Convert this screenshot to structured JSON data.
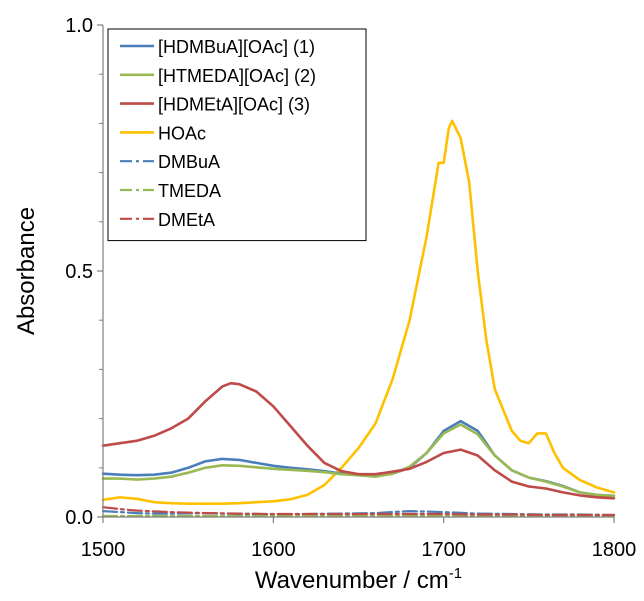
{
  "chart_data": {
    "type": "line",
    "title": "",
    "xlabel": "Wavenumber / cm",
    "xlabel_superscript": "-1",
    "ylabel": "Absorbance",
    "xlim": [
      1500,
      1800
    ],
    "ylim": [
      0,
      1.0
    ],
    "x_ticks": [
      1500,
      1600,
      1700,
      1800
    ],
    "x_tick_labels": [
      "1500",
      "1600",
      "1700",
      "1800"
    ],
    "y_ticks": [
      0,
      0.5,
      1.0
    ],
    "y_tick_labels": [
      "0.0",
      "0.5",
      "1.0"
    ],
    "y_minor_ticks": [
      0.1,
      0.2,
      0.3,
      0.4,
      0.6,
      0.7,
      0.8,
      0.9
    ],
    "grid": false,
    "legend_position": "top-left",
    "series": [
      {
        "name": "[HDMBuA][OAc] (1)",
        "color": "#4a7ebb",
        "dash": "solid",
        "points": [
          [
            1500,
            0.088
          ],
          [
            1510,
            0.086
          ],
          [
            1520,
            0.085
          ],
          [
            1530,
            0.086
          ],
          [
            1540,
            0.09
          ],
          [
            1550,
            0.1
          ],
          [
            1560,
            0.113
          ],
          [
            1570,
            0.118
          ],
          [
            1580,
            0.116
          ],
          [
            1590,
            0.11
          ],
          [
            1600,
            0.104
          ],
          [
            1610,
            0.1
          ],
          [
            1620,
            0.097
          ],
          [
            1630,
            0.093
          ],
          [
            1640,
            0.088
          ],
          [
            1650,
            0.085
          ],
          [
            1660,
            0.083
          ],
          [
            1670,
            0.088
          ],
          [
            1680,
            0.1
          ],
          [
            1690,
            0.13
          ],
          [
            1700,
            0.175
          ],
          [
            1710,
            0.195
          ],
          [
            1720,
            0.175
          ],
          [
            1730,
            0.125
          ],
          [
            1740,
            0.095
          ],
          [
            1750,
            0.08
          ],
          [
            1760,
            0.073
          ],
          [
            1770,
            0.063
          ],
          [
            1780,
            0.05
          ],
          [
            1790,
            0.045
          ],
          [
            1800,
            0.043
          ]
        ]
      },
      {
        "name": "[HTMEDA][OAc] (2)",
        "color": "#98b954",
        "dash": "solid",
        "points": [
          [
            1500,
            0.078
          ],
          [
            1510,
            0.078
          ],
          [
            1520,
            0.076
          ],
          [
            1530,
            0.078
          ],
          [
            1540,
            0.082
          ],
          [
            1550,
            0.09
          ],
          [
            1560,
            0.1
          ],
          [
            1570,
            0.105
          ],
          [
            1580,
            0.104
          ],
          [
            1590,
            0.101
          ],
          [
            1600,
            0.098
          ],
          [
            1610,
            0.096
          ],
          [
            1620,
            0.094
          ],
          [
            1630,
            0.091
          ],
          [
            1640,
            0.087
          ],
          [
            1650,
            0.085
          ],
          [
            1660,
            0.082
          ],
          [
            1670,
            0.088
          ],
          [
            1680,
            0.102
          ],
          [
            1690,
            0.13
          ],
          [
            1700,
            0.17
          ],
          [
            1710,
            0.188
          ],
          [
            1720,
            0.168
          ],
          [
            1730,
            0.125
          ],
          [
            1740,
            0.095
          ],
          [
            1750,
            0.08
          ],
          [
            1760,
            0.072
          ],
          [
            1770,
            0.062
          ],
          [
            1780,
            0.05
          ],
          [
            1790,
            0.045
          ],
          [
            1800,
            0.043
          ]
        ]
      },
      {
        "name": "[HDMEtA][OAc] (3)",
        "color": "#be4b48",
        "dash": "solid",
        "points": [
          [
            1500,
            0.145
          ],
          [
            1510,
            0.15
          ],
          [
            1520,
            0.155
          ],
          [
            1530,
            0.165
          ],
          [
            1540,
            0.18
          ],
          [
            1550,
            0.2
          ],
          [
            1560,
            0.235
          ],
          [
            1570,
            0.265
          ],
          [
            1575,
            0.272
          ],
          [
            1580,
            0.27
          ],
          [
            1590,
            0.255
          ],
          [
            1600,
            0.225
          ],
          [
            1610,
            0.185
          ],
          [
            1620,
            0.145
          ],
          [
            1630,
            0.11
          ],
          [
            1640,
            0.093
          ],
          [
            1650,
            0.087
          ],
          [
            1660,
            0.087
          ],
          [
            1670,
            0.092
          ],
          [
            1680,
            0.098
          ],
          [
            1690,
            0.112
          ],
          [
            1700,
            0.13
          ],
          [
            1710,
            0.137
          ],
          [
            1720,
            0.125
          ],
          [
            1730,
            0.095
          ],
          [
            1740,
            0.072
          ],
          [
            1750,
            0.062
          ],
          [
            1760,
            0.058
          ],
          [
            1770,
            0.05
          ],
          [
            1780,
            0.044
          ],
          [
            1790,
            0.04
          ],
          [
            1800,
            0.038
          ]
        ]
      },
      {
        "name": "HOAc",
        "color": "#ffc000",
        "dash": "solid",
        "points": [
          [
            1500,
            0.035
          ],
          [
            1510,
            0.04
          ],
          [
            1520,
            0.037
          ],
          [
            1530,
            0.03
          ],
          [
            1540,
            0.028
          ],
          [
            1550,
            0.027
          ],
          [
            1560,
            0.027
          ],
          [
            1570,
            0.027
          ],
          [
            1580,
            0.028
          ],
          [
            1590,
            0.03
          ],
          [
            1600,
            0.032
          ],
          [
            1610,
            0.036
          ],
          [
            1620,
            0.045
          ],
          [
            1630,
            0.065
          ],
          [
            1640,
            0.1
          ],
          [
            1650,
            0.14
          ],
          [
            1660,
            0.19
          ],
          [
            1670,
            0.28
          ],
          [
            1680,
            0.4
          ],
          [
            1690,
            0.57
          ],
          [
            1697,
            0.72
          ],
          [
            1700,
            0.72
          ],
          [
            1703,
            0.79
          ],
          [
            1705,
            0.805
          ],
          [
            1710,
            0.77
          ],
          [
            1715,
            0.68
          ],
          [
            1720,
            0.5
          ],
          [
            1725,
            0.36
          ],
          [
            1730,
            0.26
          ],
          [
            1740,
            0.175
          ],
          [
            1745,
            0.155
          ],
          [
            1750,
            0.15
          ],
          [
            1755,
            0.17
          ],
          [
            1760,
            0.17
          ],
          [
            1765,
            0.13
          ],
          [
            1770,
            0.1
          ],
          [
            1780,
            0.075
          ],
          [
            1790,
            0.06
          ],
          [
            1800,
            0.05
          ]
        ]
      },
      {
        "name": "DMBuA",
        "color": "#4a7ebb",
        "dash": "dash-dot",
        "points": [
          [
            1500,
            0.012
          ],
          [
            1510,
            0.01
          ],
          [
            1520,
            0.008
          ],
          [
            1530,
            0.007
          ],
          [
            1540,
            0.007
          ],
          [
            1560,
            0.008
          ],
          [
            1580,
            0.006
          ],
          [
            1600,
            0.005
          ],
          [
            1620,
            0.006
          ],
          [
            1640,
            0.007
          ],
          [
            1660,
            0.008
          ],
          [
            1680,
            0.012
          ],
          [
            1700,
            0.01
          ],
          [
            1720,
            0.007
          ],
          [
            1740,
            0.006
          ],
          [
            1760,
            0.005
          ],
          [
            1780,
            0.005
          ],
          [
            1800,
            0.004
          ]
        ]
      },
      {
        "name": "TMEDA",
        "color": "#98b954",
        "dash": "dash-dot",
        "points": [
          [
            1500,
            0.002
          ],
          [
            1520,
            0.002
          ],
          [
            1540,
            0.002
          ],
          [
            1560,
            0.002
          ],
          [
            1580,
            0.002
          ],
          [
            1600,
            0.002
          ],
          [
            1620,
            0.002
          ],
          [
            1640,
            0.002
          ],
          [
            1660,
            0.002
          ],
          [
            1680,
            0.002
          ],
          [
            1700,
            0.002
          ],
          [
            1720,
            0.002
          ],
          [
            1740,
            0.002
          ],
          [
            1760,
            0.002
          ],
          [
            1780,
            0.002
          ],
          [
            1800,
            0.002
          ]
        ]
      },
      {
        "name": "DMEtA",
        "color": "#be4b48",
        "dash": "dash-dot",
        "points": [
          [
            1500,
            0.02
          ],
          [
            1510,
            0.016
          ],
          [
            1520,
            0.013
          ],
          [
            1540,
            0.01
          ],
          [
            1560,
            0.008
          ],
          [
            1580,
            0.007
          ],
          [
            1600,
            0.006
          ],
          [
            1620,
            0.006
          ],
          [
            1640,
            0.006
          ],
          [
            1660,
            0.006
          ],
          [
            1680,
            0.006
          ],
          [
            1700,
            0.006
          ],
          [
            1720,
            0.005
          ],
          [
            1740,
            0.005
          ],
          [
            1760,
            0.004
          ],
          [
            1780,
            0.004
          ],
          [
            1800,
            0.004
          ]
        ]
      }
    ]
  }
}
